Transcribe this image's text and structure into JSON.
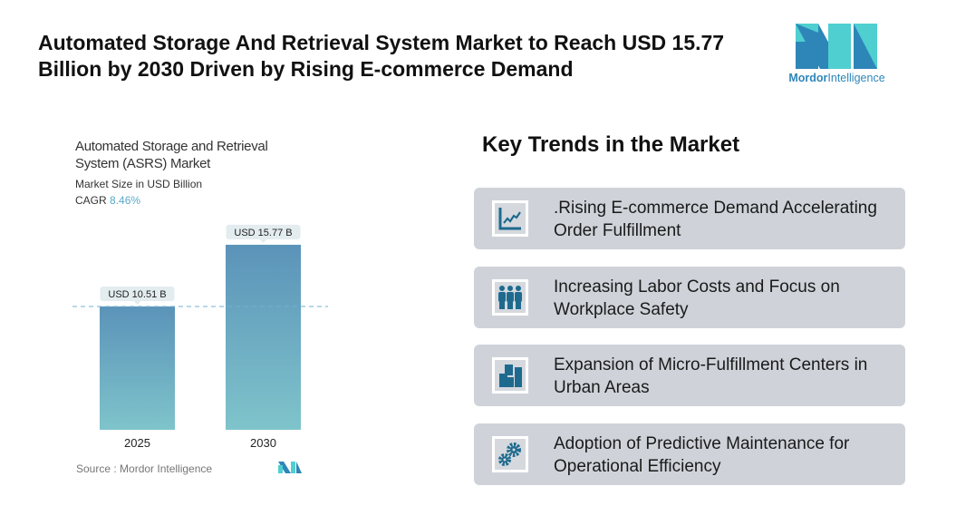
{
  "header": {
    "title": "Automated Storage And Retrieval System Market to Reach USD 15.77 Billion by 2030 Driven by Rising E-commerce Demand",
    "logo_text_bold": "Mordor",
    "logo_text": "Intelligence"
  },
  "chart_data": {
    "type": "bar",
    "title": "Automated Storage and Retrieval System (ASRS) Market",
    "subtitle": "Market Size in USD Billion",
    "cagr_label": "CAGR",
    "cagr_value": "8.46%",
    "categories": [
      "2025",
      "2030"
    ],
    "values": [
      10.51,
      15.77
    ],
    "data_labels": [
      "USD 10.51 B",
      "USD 15.77 B"
    ],
    "ylim": [
      0,
      16
    ],
    "bar_color_top": "#5b93b9",
    "bar_color_bottom": "#7fc4cb",
    "source": "Source :  Mordor Intelligence",
    "reference_line_value": 10.51
  },
  "trends": {
    "title": "Key Trends in the Market",
    "items": [
      {
        "icon": "line-chart-icon",
        "label": ".Rising E-commerce Demand Accelerating Order Fulfillment"
      },
      {
        "icon": "people-icon",
        "label": "Increasing Labor Costs and Focus on Workplace Safety"
      },
      {
        "icon": "buildings-icon",
        "label": "Expansion of Micro-Fulfillment Centers in Urban Areas"
      },
      {
        "icon": "gears-icon",
        "label": "Adoption of Predictive Maintenance for Operational Efficiency"
      }
    ]
  },
  "colors": {
    "accent": "#1e6a8f",
    "card_bg": "#cfd3d9"
  }
}
